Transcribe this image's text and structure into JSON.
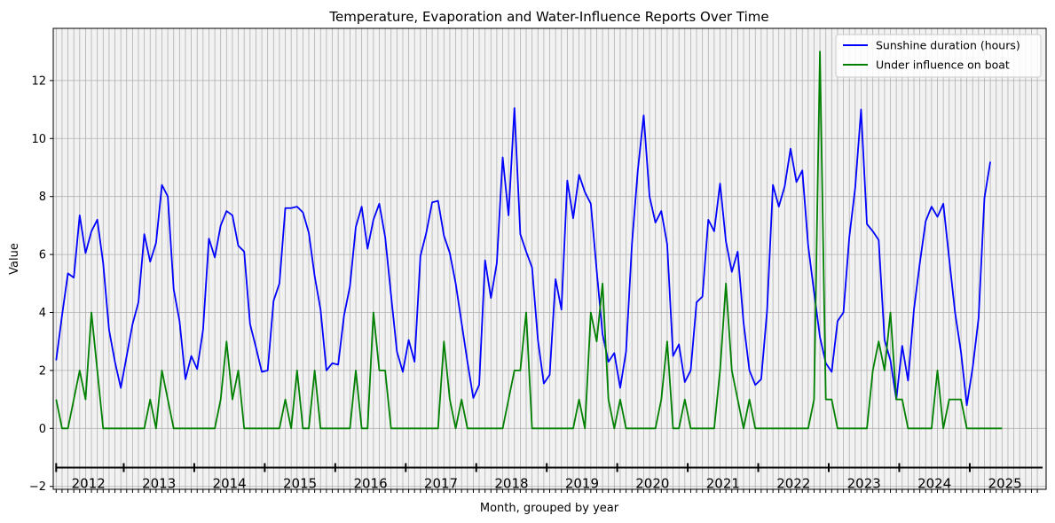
{
  "chart_data": {
    "type": "line",
    "title": "Temperature, Evaporation and Water-Influence Reports Over Time",
    "xlabel": "Month, grouped by year",
    "ylabel": "Value",
    "ylim": [
      -2.1,
      13.8
    ],
    "yticks": [
      -2,
      0,
      2,
      4,
      6,
      8,
      10,
      12
    ],
    "x_start": "2012-01",
    "year_labels": [
      "2012",
      "2013",
      "2014",
      "2015",
      "2016",
      "2017",
      "2018",
      "2019",
      "2020",
      "2021",
      "2022",
      "2023",
      "2024",
      "2025"
    ],
    "grid": true,
    "legend_position": "top-right",
    "series": [
      {
        "name": "Sunshine duration (hours)",
        "color": "#0000ff",
        "values": [
          2.35,
          3.9,
          5.35,
          5.2,
          7.35,
          6.05,
          6.8,
          7.2,
          5.7,
          3.4,
          2.3,
          1.4,
          2.5,
          3.6,
          4.35,
          6.7,
          5.75,
          6.4,
          8.4,
          8.0,
          4.8,
          3.7,
          1.7,
          2.5,
          2.05,
          3.4,
          6.55,
          5.9,
          7.0,
          7.5,
          7.35,
          6.3,
          6.1,
          3.6,
          2.8,
          1.95,
          2.0,
          4.4,
          5.0,
          7.6,
          7.6,
          7.65,
          7.45,
          6.75,
          5.25,
          4.1,
          2.0,
          2.25,
          2.2,
          3.9,
          4.9,
          6.95,
          7.65,
          6.2,
          7.2,
          7.75,
          6.6,
          4.6,
          2.65,
          1.95,
          3.05,
          2.3,
          5.95,
          6.75,
          7.8,
          7.85,
          6.65,
          6.05,
          5.0,
          3.65,
          2.3,
          1.05,
          1.5,
          5.8,
          4.5,
          5.7,
          9.35,
          7.35,
          11.05,
          6.7,
          6.1,
          5.55,
          3.05,
          1.55,
          1.85,
          5.15,
          4.1,
          8.55,
          7.25,
          8.75,
          8.15,
          7.75,
          5.45,
          3.25,
          2.3,
          2.6,
          1.4,
          2.65,
          6.35,
          8.9,
          10.8,
          8.0,
          7.1,
          7.5,
          6.35,
          2.5,
          2.9,
          1.6,
          2.0,
          4.35,
          4.55,
          7.2,
          6.8,
          8.45,
          6.45,
          5.4,
          6.1,
          3.65,
          2.0,
          1.5,
          1.7,
          4.05,
          8.4,
          7.65,
          8.35,
          9.65,
          8.5,
          8.9,
          6.3,
          4.7,
          3.15,
          2.25,
          1.95,
          3.7,
          4.0,
          6.6,
          8.3,
          11.0,
          7.05,
          6.8,
          6.5,
          3.05,
          2.35,
          1.0,
          2.85,
          1.65,
          4.1,
          5.7,
          7.15,
          7.65,
          7.3,
          7.75,
          5.85,
          4.0,
          2.65,
          0.8,
          2.1,
          3.8,
          7.95,
          9.2
        ]
      },
      {
        "name": "Under influence on boat",
        "color": "#008000",
        "values": [
          1,
          0,
          0,
          1,
          2,
          1,
          4,
          2,
          0,
          0,
          0,
          0,
          0,
          0,
          0,
          0,
          1,
          0,
          2,
          1,
          0,
          0,
          0,
          0,
          0,
          0,
          0,
          0,
          1,
          3,
          1,
          2,
          0,
          0,
          0,
          0,
          0,
          0,
          0,
          1,
          0,
          2,
          0,
          0,
          2,
          0,
          0,
          0,
          0,
          0,
          0,
          2,
          0,
          0,
          4,
          2,
          2,
          0,
          0,
          0,
          0,
          0,
          0,
          0,
          0,
          0,
          3,
          1,
          0,
          1,
          0,
          0,
          0,
          0,
          0,
          0,
          0,
          1,
          2,
          2,
          4,
          0,
          0,
          0,
          0,
          0,
          0,
          0,
          0,
          1,
          0,
          4,
          3,
          5,
          1,
          0,
          1,
          0,
          0,
          0,
          0,
          0,
          0,
          1,
          3,
          0,
          0,
          1,
          0,
          0,
          0,
          0,
          0,
          2,
          5,
          2,
          1,
          0,
          1,
          0,
          0,
          0,
          0,
          0,
          0,
          0,
          0,
          0,
          0,
          1,
          13,
          1,
          1,
          0,
          0,
          0,
          0,
          0,
          0,
          2,
          3,
          2,
          4,
          1,
          1,
          0,
          0,
          0,
          0,
          0,
          2,
          0,
          1,
          1,
          1,
          0,
          0,
          0,
          0,
          0,
          0,
          0
        ]
      }
    ]
  }
}
